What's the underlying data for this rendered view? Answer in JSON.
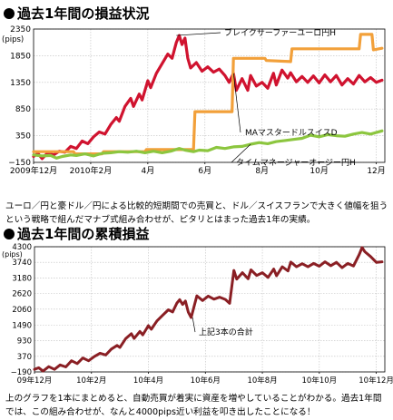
{
  "section1": {
    "title": "過去1年間の損益状況",
    "caption": "ユーロ／円と豪ドル／円による比較的短期間での売買と、ドル／スイスフランで大きく値幅を狙うという戦略で組んだマナブ式組み合わせが、ピタリとはまった過去1年の実績。"
  },
  "section2": {
    "title": "過去1年間の累積損益",
    "caption": "上のグラフを1本にまとめると、自動売買が着実に資産を増やしていることがわかる。過去1年間では、この組み合わせが、なんと4000pips近い利益を叩き出したことになる！"
  },
  "colors": {
    "red": "#d0132f",
    "orange": "#f2a03a",
    "green": "#8cc63f",
    "maroon": "#8a1f24",
    "grid": "#bfbfbf"
  },
  "chart_data": [
    {
      "type": "line",
      "title": "過去1年間の損益状況",
      "ylabel": "(pips)",
      "ylim": [
        -150,
        2350
      ],
      "yticks": [
        -150,
        350,
        850,
        1350,
        1850,
        2350
      ],
      "ytick_labels": [
        "−150",
        "350",
        "850",
        "1350",
        "1850",
        "2350"
      ],
      "xlim": [
        0,
        12.3
      ],
      "xticks": [
        0,
        2,
        4,
        6,
        8,
        10,
        12
      ],
      "xtick_labels": [
        "2009年12月",
        "2010年2月",
        "4月",
        "6月",
        "8月",
        "10月",
        "12月"
      ],
      "grid": true,
      "series": [
        {
          "name": "ブレイクサーファーユーロ円H",
          "color": "red",
          "points": [
            [
              0.0,
              -40
            ],
            [
              0.15,
              20
            ],
            [
              0.3,
              -80
            ],
            [
              0.5,
              30
            ],
            [
              0.7,
              -10
            ],
            [
              0.9,
              60
            ],
            [
              1.1,
              40
            ],
            [
              1.3,
              150
            ],
            [
              1.5,
              110
            ],
            [
              1.7,
              250
            ],
            [
              1.9,
              200
            ],
            [
              2.1,
              330
            ],
            [
              2.3,
              420
            ],
            [
              2.5,
              380
            ],
            [
              2.7,
              560
            ],
            [
              2.9,
              690
            ],
            [
              3.0,
              620
            ],
            [
              3.2,
              900
            ],
            [
              3.4,
              1050
            ],
            [
              3.5,
              900
            ],
            [
              3.7,
              1130
            ],
            [
              3.8,
              1020
            ],
            [
              4.0,
              1380
            ],
            [
              4.1,
              1250
            ],
            [
              4.3,
              1520
            ],
            [
              4.5,
              1700
            ],
            [
              4.7,
              1880
            ],
            [
              4.85,
              1800
            ],
            [
              5.0,
              2100
            ],
            [
              5.1,
              2230
            ],
            [
              5.2,
              2060
            ],
            [
              5.3,
              2180
            ],
            [
              5.4,
              1800
            ],
            [
              5.5,
              1620
            ],
            [
              5.7,
              1720
            ],
            [
              5.9,
              1560
            ],
            [
              6.1,
              1640
            ],
            [
              6.3,
              1540
            ],
            [
              6.5,
              1600
            ],
            [
              6.7,
              1480
            ],
            [
              6.85,
              1350
            ],
            [
              7.0,
              1520
            ],
            [
              7.1,
              1200
            ],
            [
              7.3,
              1420
            ],
            [
              7.5,
              1200
            ],
            [
              7.6,
              1480
            ],
            [
              7.8,
              1280
            ],
            [
              8.0,
              1350
            ],
            [
              8.2,
              1240
            ],
            [
              8.4,
              1520
            ],
            [
              8.5,
              1300
            ],
            [
              8.7,
              1580
            ],
            [
              8.9,
              1430
            ],
            [
              9.0,
              1530
            ],
            [
              9.2,
              1360
            ],
            [
              9.4,
              1460
            ],
            [
              9.6,
              1350
            ],
            [
              9.8,
              1470
            ],
            [
              10.0,
              1340
            ],
            [
              10.2,
              1490
            ],
            [
              10.4,
              1360
            ],
            [
              10.6,
              1480
            ],
            [
              10.8,
              1300
            ],
            [
              11.0,
              1420
            ],
            [
              11.2,
              1320
            ],
            [
              11.4,
              1480
            ],
            [
              11.6,
              1360
            ],
            [
              11.8,
              1440
            ],
            [
              12.0,
              1350
            ],
            [
              12.2,
              1390
            ]
          ]
        },
        {
          "name": "MAマスタードルスイスD",
          "color": "orange",
          "points": [
            [
              0.0,
              50
            ],
            [
              1.4,
              50
            ],
            [
              1.45,
              10
            ],
            [
              2.4,
              10
            ],
            [
              2.45,
              50
            ],
            [
              3.9,
              50
            ],
            [
              3.95,
              90
            ],
            [
              5.6,
              90
            ],
            [
              5.65,
              800
            ],
            [
              6.95,
              800
            ],
            [
              7.0,
              1800
            ],
            [
              8.1,
              1800
            ],
            [
              8.15,
              1760
            ],
            [
              9.0,
              1740
            ],
            [
              9.05,
              1980
            ],
            [
              11.4,
              1980
            ],
            [
              11.45,
              2250
            ],
            [
              11.85,
              2250
            ],
            [
              11.9,
              1960
            ],
            [
              12.2,
              1990
            ]
          ]
        },
        {
          "name": "タイムマネージャーオージー円H",
          "color": "green",
          "points": [
            [
              0.0,
              -10
            ],
            [
              0.3,
              -30
            ],
            [
              0.6,
              -20
            ],
            [
              0.8,
              -70
            ],
            [
              1.0,
              -40
            ],
            [
              1.3,
              -10
            ],
            [
              1.5,
              -20
            ],
            [
              1.8,
              10
            ],
            [
              2.1,
              -30
            ],
            [
              2.4,
              20
            ],
            [
              2.7,
              30
            ],
            [
              3.0,
              50
            ],
            [
              3.3,
              40
            ],
            [
              3.6,
              60
            ],
            [
              3.9,
              30
            ],
            [
              4.2,
              60
            ],
            [
              4.5,
              30
            ],
            [
              4.8,
              60
            ],
            [
              5.1,
              110
            ],
            [
              5.3,
              80
            ],
            [
              5.6,
              50
            ],
            [
              5.8,
              80
            ],
            [
              6.1,
              70
            ],
            [
              6.4,
              130
            ],
            [
              6.7,
              110
            ],
            [
              7.0,
              140
            ],
            [
              7.3,
              150
            ],
            [
              7.6,
              190
            ],
            [
              7.9,
              220
            ],
            [
              8.2,
              200
            ],
            [
              8.5,
              240
            ],
            [
              8.8,
              260
            ],
            [
              9.1,
              280
            ],
            [
              9.4,
              300
            ],
            [
              9.7,
              360
            ],
            [
              10.0,
              330
            ],
            [
              10.3,
              370
            ],
            [
              10.6,
              350
            ],
            [
              10.9,
              340
            ],
            [
              11.2,
              380
            ],
            [
              11.5,
              410
            ],
            [
              11.8,
              380
            ],
            [
              12.2,
              440
            ]
          ]
        }
      ]
    },
    {
      "type": "line",
      "title": "過去1年間の累積損益",
      "ylabel": "(pips)",
      "ylim": [
        -190,
        4300
      ],
      "yticks": [
        -190,
        370,
        930,
        1490,
        2060,
        2620,
        3180,
        3740,
        4300
      ],
      "ytick_labels": [
        "−190",
        "370",
        "930",
        "1490",
        "2060",
        "2620",
        "3180",
        "3740",
        "4300"
      ],
      "xlim": [
        0,
        12.3
      ],
      "xticks": [
        0,
        2,
        4,
        6,
        8,
        10,
        12
      ],
      "xtick_labels": [
        "09年12月",
        "10年2月",
        "10年4月",
        "10年6月",
        "10年8月",
        "10年10月",
        "10年12月"
      ],
      "grid": true,
      "annotation": "上記3本の合計",
      "series": [
        {
          "name": "上記3本の合計",
          "color": "maroon",
          "points": [
            [
              0.0,
              -100
            ],
            [
              0.15,
              -40
            ],
            [
              0.3,
              -160
            ],
            [
              0.5,
              0
            ],
            [
              0.7,
              -100
            ],
            [
              0.9,
              60
            ],
            [
              1.1,
              -10
            ],
            [
              1.3,
              210
            ],
            [
              1.5,
              110
            ],
            [
              1.7,
              310
            ],
            [
              1.9,
              210
            ],
            [
              2.1,
              360
            ],
            [
              2.3,
              480
            ],
            [
              2.5,
              420
            ],
            [
              2.7,
              630
            ],
            [
              2.9,
              760
            ],
            [
              3.0,
              690
            ],
            [
              3.2,
              1000
            ],
            [
              3.4,
              1180
            ],
            [
              3.5,
              1010
            ],
            [
              3.7,
              1260
            ],
            [
              3.8,
              1140
            ],
            [
              4.0,
              1470
            ],
            [
              4.1,
              1340
            ],
            [
              4.3,
              1640
            ],
            [
              4.5,
              1840
            ],
            [
              4.7,
              2040
            ],
            [
              4.85,
              1960
            ],
            [
              5.0,
              2280
            ],
            [
              5.1,
              2400
            ],
            [
              5.2,
              2230
            ],
            [
              5.3,
              2350
            ],
            [
              5.4,
              1950
            ],
            [
              5.5,
              1760
            ],
            [
              5.7,
              2540
            ],
            [
              5.9,
              2370
            ],
            [
              6.1,
              2530
            ],
            [
              6.3,
              2420
            ],
            [
              6.5,
              2490
            ],
            [
              6.7,
              2410
            ],
            [
              6.85,
              2270
            ],
            [
              7.0,
              3450
            ],
            [
              7.1,
              3140
            ],
            [
              7.3,
              3370
            ],
            [
              7.5,
              3150
            ],
            [
              7.6,
              3470
            ],
            [
              7.8,
              3270
            ],
            [
              8.0,
              3370
            ],
            [
              8.2,
              3200
            ],
            [
              8.4,
              3500
            ],
            [
              8.5,
              3260
            ],
            [
              8.7,
              3580
            ],
            [
              8.9,
              3430
            ],
            [
              9.0,
              3750
            ],
            [
              9.2,
              3580
            ],
            [
              9.4,
              3690
            ],
            [
              9.6,
              3580
            ],
            [
              9.8,
              3700
            ],
            [
              10.0,
              3600
            ],
            [
              10.2,
              3760
            ],
            [
              10.4,
              3620
            ],
            [
              10.6,
              3740
            ],
            [
              10.8,
              3550
            ],
            [
              11.0,
              3700
            ],
            [
              11.2,
              3610
            ],
            [
              11.4,
              4020
            ],
            [
              11.5,
              4270
            ],
            [
              11.6,
              4120
            ],
            [
              11.8,
              3950
            ],
            [
              12.0,
              3740
            ],
            [
              12.2,
              3760
            ]
          ]
        }
      ]
    }
  ]
}
